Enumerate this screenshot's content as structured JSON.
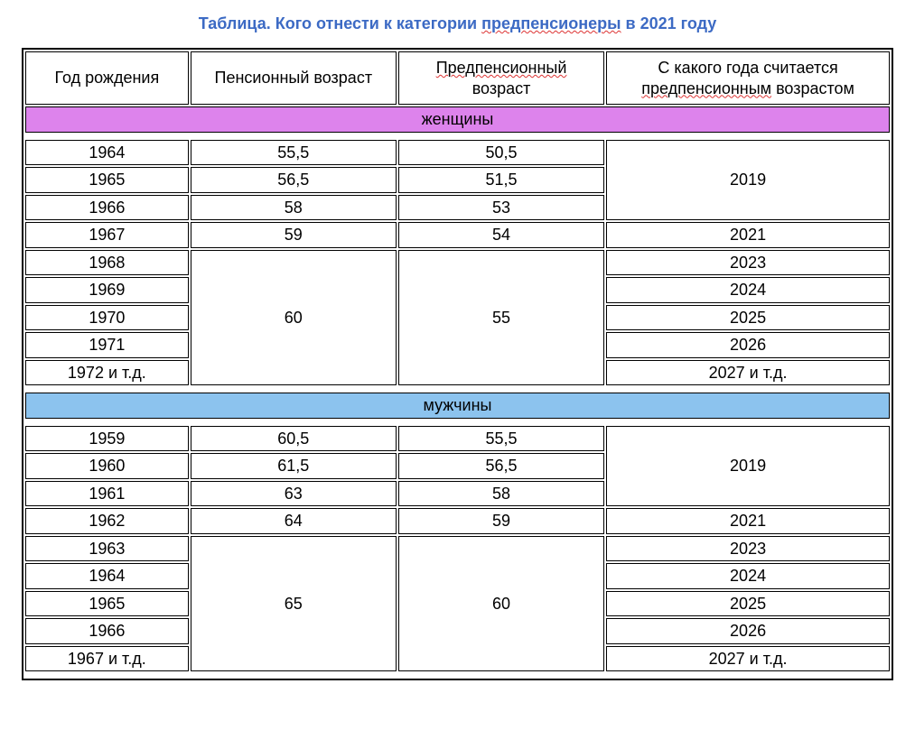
{
  "title": {
    "prefix": "Таблица. Кого отнести к категории ",
    "underlined": "предпенсионеры",
    "suffix": " в 2021 году",
    "color": "#3c6ac4",
    "fontsize": 18
  },
  "table": {
    "border_color": "#000000",
    "background": "#ffffff",
    "fontsize_header": 18,
    "fontsize_cell": 18,
    "col_widths_pct": [
      19,
      24,
      24,
      33
    ],
    "columns": [
      {
        "label": "Год рождения"
      },
      {
        "label": "Пенсионный возраст"
      },
      {
        "label_line1_underlined": "Предпенсионный",
        "label_line2": "возраст"
      },
      {
        "label_line1": "С какого года считается",
        "label_line2_underlined": "предпенсионным",
        "label_line2_suffix": " возрастом"
      }
    ],
    "sections": [
      {
        "heading": "женщины",
        "heading_bg": "#dd83ec",
        "rows": [
          {
            "birth": "1964",
            "pension_age": "55,5",
            "prepension_age": "50,5",
            "since_year": "2019",
            "since_rowspan": 3
          },
          {
            "birth": "1965",
            "pension_age": "56,5",
            "prepension_age": "51,5"
          },
          {
            "birth": "1966",
            "pension_age": "58",
            "prepension_age": "53"
          },
          {
            "birth": "1967",
            "pension_age": "59",
            "prepension_age": "54",
            "since_year": "2021"
          },
          {
            "birth": "1968",
            "pension_age": "60",
            "pension_rowspan": 5,
            "prepension_age": "55",
            "prepension_rowspan": 5,
            "since_year": "2023"
          },
          {
            "birth": "1969",
            "since_year": "2024"
          },
          {
            "birth": "1970",
            "since_year": "2025"
          },
          {
            "birth": "1971",
            "since_year": "2026"
          },
          {
            "birth": "1972 и т.д.",
            "since_year": "2027 и т.д."
          }
        ]
      },
      {
        "heading": "мужчины",
        "heading_bg": "#8cc3ee",
        "rows": [
          {
            "birth": "1959",
            "pension_age": "60,5",
            "prepension_age": "55,5",
            "since_year": "2019",
            "since_rowspan": 3
          },
          {
            "birth": "1960",
            "pension_age": "61,5",
            "prepension_age": "56,5"
          },
          {
            "birth": "1961",
            "pension_age": "63",
            "prepension_age": "58"
          },
          {
            "birth": "1962",
            "pension_age": "64",
            "prepension_age": "59",
            "since_year": "2021"
          },
          {
            "birth": "1963",
            "pension_age": "65",
            "pension_rowspan": 5,
            "prepension_age": "60",
            "prepension_rowspan": 5,
            "since_year": "2023"
          },
          {
            "birth": "1964",
            "since_year": "2024"
          },
          {
            "birth": "1965",
            "since_year": "2025"
          },
          {
            "birth": "1966",
            "since_year": "2026"
          },
          {
            "birth": "1967 и т.д.",
            "since_year": "2027 и т.д."
          }
        ]
      }
    ]
  }
}
